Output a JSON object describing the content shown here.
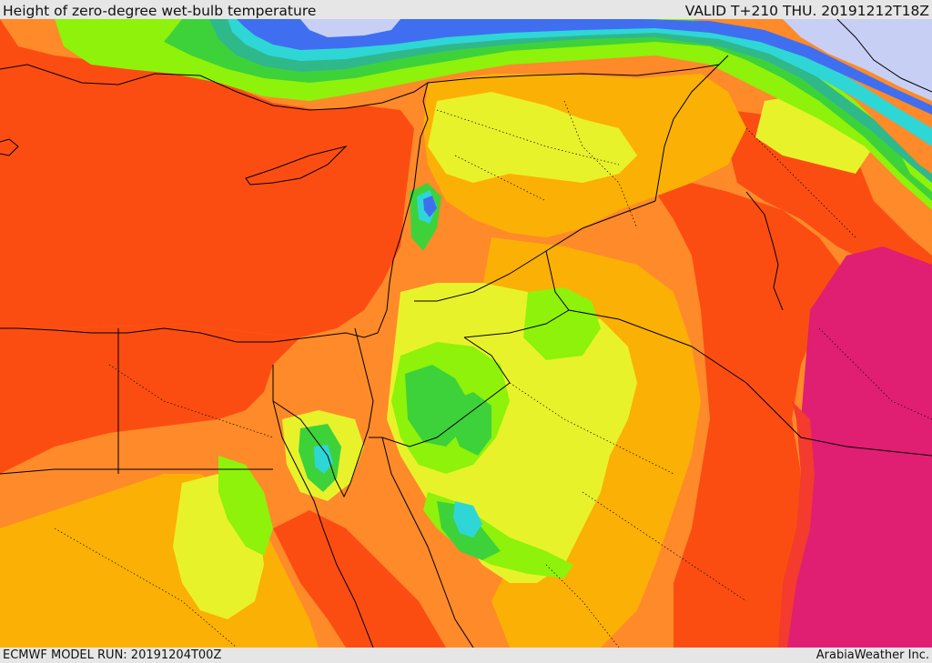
{
  "header": {
    "title": "Height of zero-degree wet-bulb temperature",
    "valid_time": "VALID T+210 THU. 20191212T18Z"
  },
  "footer": {
    "model_run": "ECMWF MODEL RUN: 20191204T00Z",
    "credit": "ArabiaWeather Inc."
  },
  "map": {
    "region": "Eastern Mediterranean and Middle East",
    "field": "zero-degree wet-bulb height",
    "palette": {
      "very_low": "#c8cff5",
      "low_blue": "#3f6ff0",
      "cyan": "#2fd6d6",
      "teal": "#2fb88a",
      "green": "#3ed23a",
      "light_green": "#8ef20a",
      "yellow": "#e8f22a",
      "gold": "#fbb005",
      "orange": "#fe8a2a",
      "red_orange": "#fb4d12",
      "crimson": "#f43b2e",
      "magenta": "#e01e72"
    },
    "boundaries_color": "#000000"
  }
}
